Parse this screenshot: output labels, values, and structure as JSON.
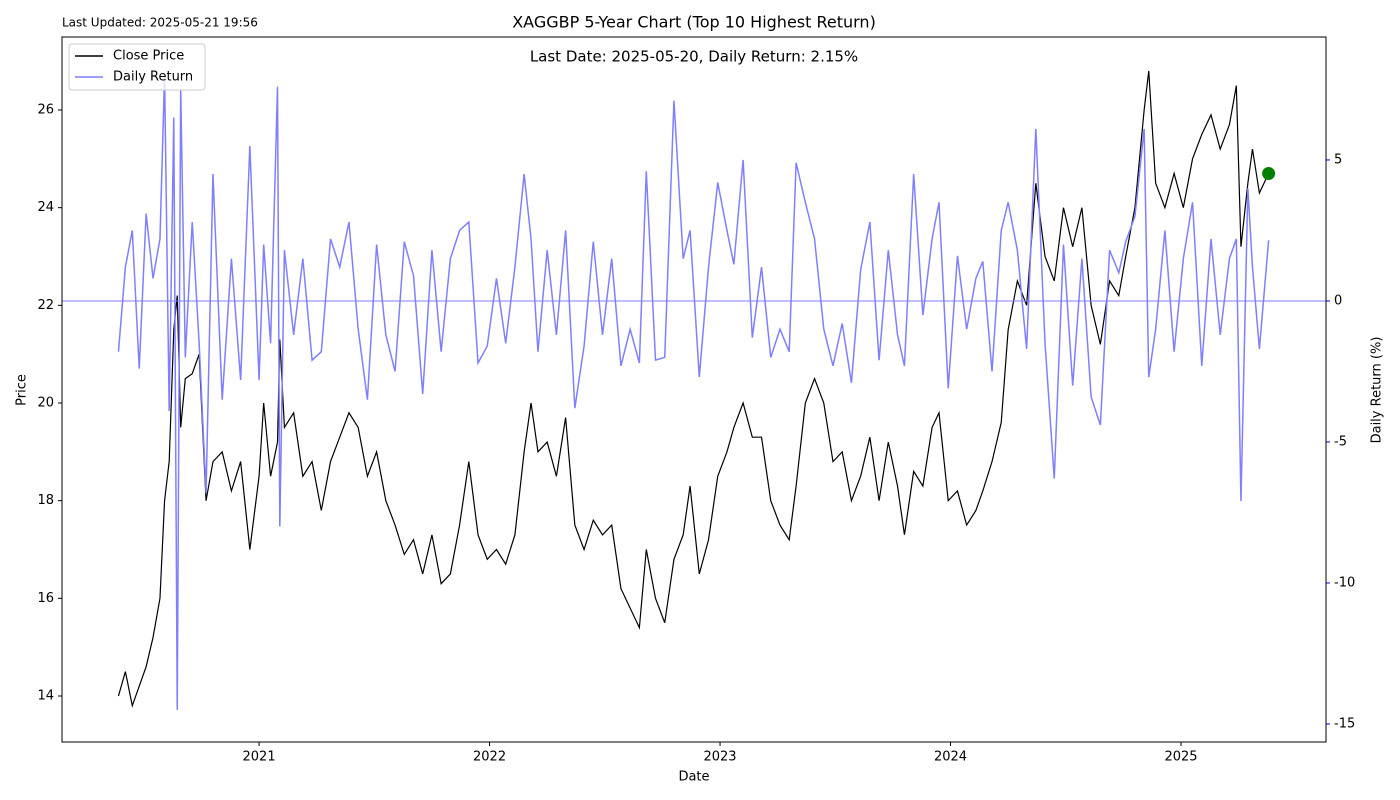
{
  "chart_data": {
    "type": "line",
    "title": "XAGGBP 5-Year Chart (Top 10 Highest Return)",
    "subtitle": "Last Date: 2025-05-20, Daily Return: 2.15%",
    "annotation": "Last Updated: 2025-05-21 19:56",
    "xlabel": "Date",
    "ylabel": "Price",
    "y2label": "Daily Return (%)",
    "x": [
      2020.39,
      2020.42,
      2020.45,
      2020.48,
      2020.51,
      2020.54,
      2020.57,
      2020.59,
      2020.61,
      2020.63,
      2020.645,
      2020.66,
      2020.68,
      2020.71,
      2020.74,
      2020.77,
      2020.8,
      2020.84,
      2020.88,
      2020.92,
      2020.96,
      2021.0,
      2021.02,
      2021.05,
      2021.08,
      2021.09,
      2021.11,
      2021.15,
      2021.19,
      2021.23,
      2021.27,
      2021.31,
      2021.35,
      2021.39,
      2021.43,
      2021.47,
      2021.51,
      2021.55,
      2021.59,
      2021.63,
      2021.67,
      2021.71,
      2021.75,
      2021.79,
      2021.83,
      2021.87,
      2021.91,
      2021.95,
      2021.99,
      2022.03,
      2022.07,
      2022.11,
      2022.15,
      2022.18,
      2022.21,
      2022.25,
      2022.29,
      2022.33,
      2022.37,
      2022.41,
      2022.45,
      2022.49,
      2022.53,
      2022.57,
      2022.61,
      2022.65,
      2022.68,
      2022.72,
      2022.76,
      2022.8,
      2022.84,
      2022.87,
      2022.91,
      2022.95,
      2022.99,
      2023.03,
      2023.06,
      2023.1,
      2023.14,
      2023.18,
      2023.22,
      2023.26,
      2023.3,
      2023.33,
      2023.37,
      2023.41,
      2023.45,
      2023.49,
      2023.53,
      2023.57,
      2023.61,
      2023.65,
      2023.69,
      2023.73,
      2023.77,
      2023.8,
      2023.84,
      2023.88,
      2023.92,
      2023.95,
      2023.99,
      2024.03,
      2024.07,
      2024.11,
      2024.14,
      2024.18,
      2024.22,
      2024.25,
      2024.29,
      2024.33,
      2024.37,
      2024.41,
      2024.45,
      2024.49,
      2024.53,
      2024.57,
      2024.61,
      2024.65,
      2024.69,
      2024.73,
      2024.76,
      2024.8,
      2024.84,
      2024.86,
      2024.89,
      2024.93,
      2024.97,
      2025.01,
      2025.05,
      2025.09,
      2025.13,
      2025.17,
      2025.21,
      2025.24,
      2025.26,
      2025.29,
      2025.31,
      2025.34,
      2025.38
    ],
    "series": [
      {
        "name": "Close Price",
        "color": "#000000",
        "values": [
          14.0,
          14.5,
          13.8,
          14.2,
          14.6,
          15.2,
          16.0,
          18.0,
          18.8,
          21.5,
          22.2,
          19.5,
          20.5,
          20.6,
          21.0,
          18.0,
          18.8,
          19.0,
          18.2,
          18.8,
          17.0,
          18.5,
          20.0,
          18.5,
          19.2,
          21.3,
          19.5,
          19.8,
          18.5,
          18.8,
          17.8,
          18.8,
          19.3,
          19.8,
          19.5,
          18.5,
          19.0,
          18.0,
          17.5,
          16.9,
          17.2,
          16.5,
          17.3,
          16.3,
          16.5,
          17.5,
          18.8,
          17.3,
          16.8,
          17.0,
          16.7,
          17.3,
          19.0,
          20.0,
          19.0,
          19.2,
          18.5,
          19.7,
          17.5,
          17.0,
          17.6,
          17.3,
          17.5,
          16.2,
          15.8,
          15.4,
          17.0,
          16.0,
          15.5,
          16.8,
          17.3,
          18.3,
          16.5,
          17.2,
          18.5,
          19.0,
          19.5,
          20.0,
          19.3,
          19.3,
          18.0,
          17.5,
          17.2,
          18.3,
          20.0,
          20.5,
          20.0,
          18.8,
          19.0,
          18.0,
          18.5,
          19.3,
          18.0,
          19.2,
          18.3,
          17.3,
          18.6,
          18.3,
          19.5,
          19.8,
          18.0,
          18.2,
          17.5,
          17.8,
          18.2,
          18.8,
          19.6,
          21.5,
          22.5,
          22.0,
          24.5,
          23.0,
          22.5,
          24.0,
          23.2,
          24.0,
          22.0,
          21.2,
          22.5,
          22.2,
          23.0,
          24.0,
          26.0,
          26.8,
          24.5,
          24.0,
          24.7,
          24.0,
          25.0,
          25.5,
          25.9,
          25.2,
          25.7,
          26.5,
          23.2,
          24.5,
          25.2,
          24.3,
          24.7
        ]
      },
      {
        "name": "Daily Return",
        "color": "#7f7fff",
        "axis": "y2",
        "values": [
          -1.8,
          1.2,
          2.5,
          -2.4,
          3.1,
          0.8,
          2.2,
          8.0,
          -3.9,
          6.5,
          -14.5,
          7.5,
          -2.0,
          2.8,
          -1.5,
          -6.8,
          4.5,
          -3.5,
          1.5,
          -2.8,
          5.5,
          -2.8,
          2.0,
          -1.5,
          7.6,
          -8.0,
          1.8,
          -1.2,
          1.5,
          -2.1,
          -1.8,
          2.2,
          1.2,
          2.8,
          -1.0,
          -3.5,
          2.0,
          -1.2,
          -2.5,
          2.1,
          0.9,
          -3.3,
          1.8,
          -1.8,
          1.5,
          2.5,
          2.8,
          -2.2,
          -1.6,
          0.8,
          -1.5,
          1.2,
          4.5,
          2.2,
          -1.8,
          1.8,
          -1.2,
          2.5,
          -3.8,
          -1.6,
          2.1,
          -1.2,
          1.5,
          -2.3,
          -1.0,
          -2.2,
          4.6,
          -2.1,
          -2.0,
          7.1,
          1.5,
          2.5,
          -2.7,
          1.2,
          4.2,
          2.5,
          1.3,
          5.0,
          -1.3,
          1.2,
          -2.0,
          -1.0,
          -1.8,
          4.9,
          3.5,
          2.2,
          -1.0,
          -2.3,
          -0.8,
          -2.9,
          1.1,
          2.8,
          -2.1,
          1.8,
          -1.2,
          -2.3,
          4.5,
          -0.5,
          2.2,
          3.5,
          -3.1,
          1.6,
          -1.0,
          0.8,
          1.4,
          -2.5,
          2.5,
          3.5,
          1.8,
          -1.7,
          6.1,
          -1.5,
          -6.3,
          2.0,
          -3.0,
          1.5,
          -3.4,
          -4.4,
          1.8,
          1.0,
          2.1,
          3.0,
          6.1,
          -2.7,
          -1.0,
          2.5,
          -1.8,
          1.5,
          3.5,
          -2.3,
          2.2,
          -1.2,
          1.5,
          2.2,
          -7.1,
          4.0,
          1.2,
          -1.7,
          2.15
        ]
      }
    ],
    "highlight": {
      "x": 2025.38,
      "value": 24.7,
      "color": "#008000"
    },
    "zero_line": true,
    "y2_color": "#0000ff",
    "xlim": [
      2020.145,
      2025.629
    ],
    "xticks": [
      2021,
      2022,
      2023,
      2024,
      2025
    ],
    "ylim": [
      13.058,
      27.495
    ],
    "yticks": [
      14,
      16,
      18,
      20,
      22,
      24,
      26
    ],
    "y2lim": [
      -15.64,
      9.36
    ],
    "y2ticks": [
      -15,
      -10,
      -5,
      0,
      5
    ],
    "grid": false,
    "legend": "upper left"
  }
}
